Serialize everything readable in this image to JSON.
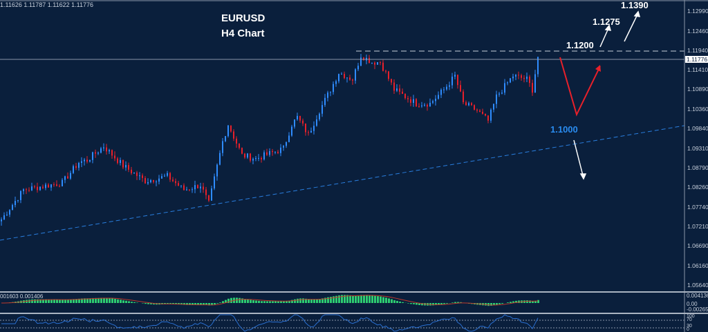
{
  "symbol_title": "EURUSD",
  "timeframe_title": "H4 Chart",
  "ohlc_readout": "1.11626 1.11787 1.11622 1.11776",
  "current_price": "1.11776",
  "colors": {
    "background": "#0a1f3c",
    "bull": "#2f8cff",
    "bear": "#e8202a",
    "trendline": "#2a7fe0",
    "macd_hist": "#2ecc71",
    "macd_signal": "#c0392b",
    "rsi": "#2a6fd0"
  },
  "annotations": {
    "target1": "1.1200",
    "target2": "1.1275",
    "target3": "1.1390",
    "support": "1.1000"
  },
  "indicators": {
    "macd_readout": "001603 0.001406",
    "macd_axis": [
      "0.004136",
      "0.00",
      "-0.002659"
    ],
    "rsi_axis": [
      "100",
      "70",
      "30",
      "0"
    ]
  },
  "chart_data": {
    "type": "candlestick",
    "title": "EURUSD H4 Chart",
    "y_ticks": [
      "1.12990",
      "1.12460",
      "1.11940",
      "1.11410",
      "1.10890",
      "1.10360",
      "1.09840",
      "1.09310",
      "1.08790",
      "1.08260",
      "1.07740",
      "1.07210",
      "1.06690",
      "1.06160",
      "1.05640"
    ],
    "ylim": [
      1.055,
      1.133
    ],
    "close_path": [
      [
        0,
        1.0742
      ],
      [
        8,
        1.0821
      ],
      [
        15,
        1.0831
      ],
      [
        22,
        1.084
      ],
      [
        28,
        1.0895
      ],
      [
        31,
        1.0901
      ],
      [
        37,
        1.0938
      ],
      [
        44,
        1.0886
      ],
      [
        52,
        1.0845
      ],
      [
        60,
        1.0858
      ],
      [
        66,
        1.0821
      ],
      [
        72,
        1.0834
      ],
      [
        75,
        1.0784
      ],
      [
        80,
        1.0951
      ],
      [
        82,
        1.0997
      ],
      [
        87,
        1.0914
      ],
      [
        92,
        1.0905
      ],
      [
        102,
        1.0932
      ],
      [
        105,
        1.0997
      ],
      [
        107,
        1.1016
      ],
      [
        111,
        1.0969
      ],
      [
        115,
        1.1034
      ],
      [
        119,
        1.109
      ],
      [
        122,
        1.1136
      ],
      [
        127,
        1.1118
      ],
      [
        130,
        1.1182
      ],
      [
        134,
        1.1164
      ],
      [
        137,
        1.1164
      ],
      [
        142,
        1.109
      ],
      [
        150,
        1.1053
      ],
      [
        155,
        1.1053
      ],
      [
        160,
        1.109
      ],
      [
        164,
        1.1127
      ],
      [
        167,
        1.1053
      ],
      [
        172,
        1.1034
      ],
      [
        176,
        1.1006
      ],
      [
        179,
        1.1071
      ],
      [
        182,
        1.1099
      ],
      [
        185,
        1.1127
      ],
      [
        190,
        1.1118
      ],
      [
        192,
        1.109
      ],
      [
        194,
        1.11776
      ]
    ],
    "levels": {
      "resistance_dashed": 1.1194,
      "current_line": 1.11776
    }
  }
}
